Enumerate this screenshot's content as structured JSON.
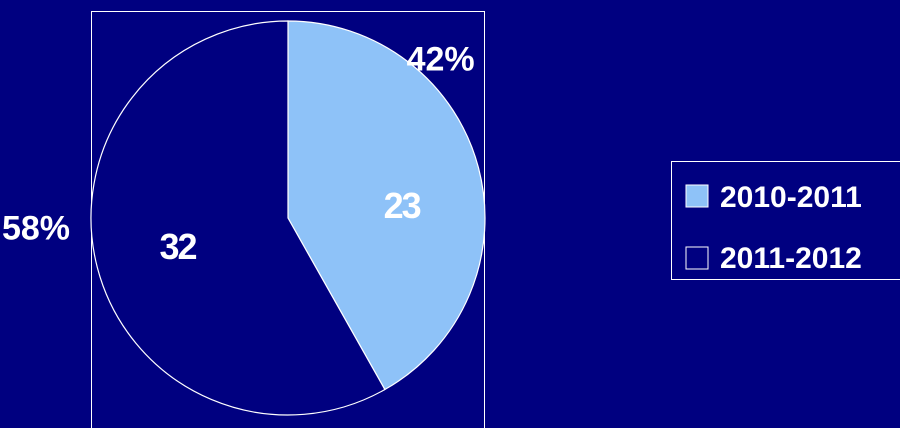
{
  "chart_data": {
    "type": "pie",
    "categories": [
      "2010-2011",
      "2011-2012"
    ],
    "values": [
      23,
      32
    ],
    "percent_labels": [
      "42%",
      "58%"
    ],
    "colors": {
      "background": "#000080",
      "slice_2010_2011": "#8ec2f8",
      "slice_2011_2012": "#000080",
      "outline": "#ffffff"
    },
    "legend_position": "right",
    "start_angle": "12 o'clock",
    "direction": "clockwise"
  }
}
